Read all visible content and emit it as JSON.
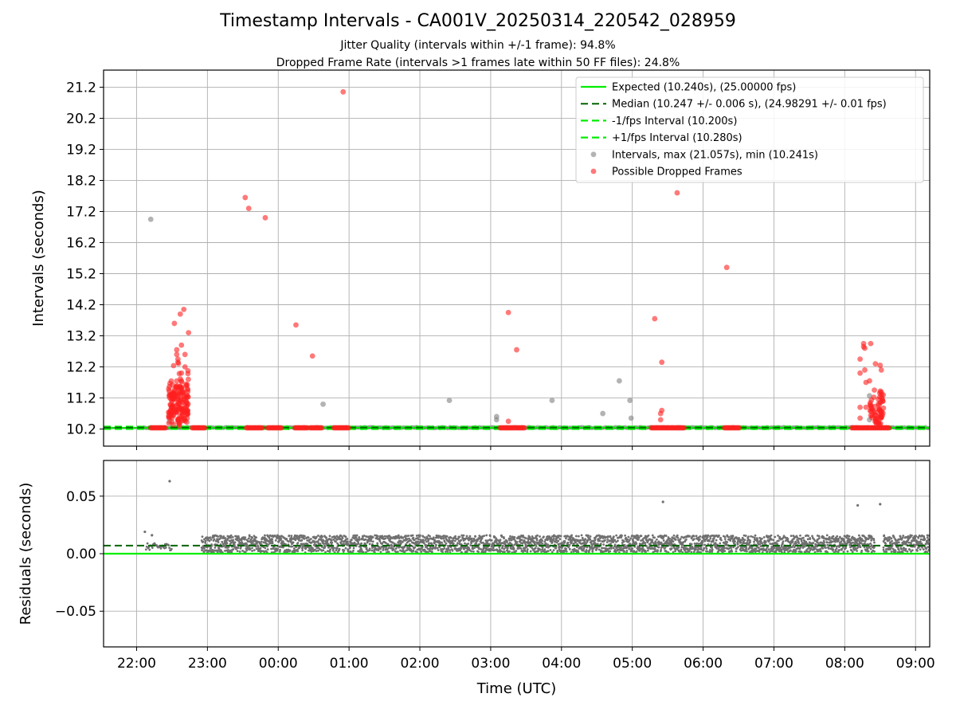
{
  "title": "Timestamp Intervals - CA001V_20250314_220542_028959",
  "subtitles": [
    "Jitter Quality (intervals within +/-1 frame): 94.8%",
    "Dropped Frame Rate (intervals >1 frames late within 50 FF files): 24.8%"
  ],
  "colors": {
    "expected": "#00ee00",
    "median": "#006400",
    "interval_bound": "#00ee00",
    "intervals": "#808080",
    "dropped": "#ff2020",
    "residual_points": "#707070",
    "grid": "#b0b0b0"
  },
  "chart_data": [
    {
      "type": "scatter",
      "ylabel": "Intervals (seconds)",
      "xlim": [
        "21:32",
        "09:12"
      ],
      "ylim": [
        9.65,
        21.75
      ],
      "yticks": [
        "10.2",
        "11.2",
        "12.2",
        "13.2",
        "14.2",
        "15.2",
        "16.2",
        "17.2",
        "18.2",
        "19.2",
        "20.2",
        "21.2"
      ],
      "grid": true,
      "legend_position": "top-right",
      "legend": [
        "Expected (10.240s), (25.00000 fps)",
        "Median (10.247 +/- 0.006 s), (24.98291 +/- 0.01 fps)",
        "-1/fps Interval (10.200s)",
        "+1/fps Interval (10.280s)",
        "Intervals, max (21.057s), min (10.241s)",
        "Possible Dropped Frames"
      ],
      "reference_lines": {
        "expected": 10.24,
        "median": 10.247,
        "minus_1_fps": 10.2,
        "plus_1_fps": 10.28
      },
      "normal_intervals_dense_band": {
        "x_start": "22:05",
        "x_end": "09:12",
        "value": 10.247
      },
      "normal_intervals": [
        {
          "x": "22:12",
          "y": 16.95
        },
        {
          "x": "22:28",
          "y": 10.45
        },
        {
          "x": "00:38",
          "y": 11.0
        },
        {
          "x": "02:25",
          "y": 11.12
        },
        {
          "x": "03:05",
          "y": 10.6
        },
        {
          "x": "03:05",
          "y": 10.5
        },
        {
          "x": "03:52",
          "y": 11.12
        },
        {
          "x": "04:35",
          "y": 10.7
        },
        {
          "x": "04:49",
          "y": 11.75
        },
        {
          "x": "04:58",
          "y": 11.12
        },
        {
          "x": "04:59",
          "y": 10.55
        },
        {
          "x": "08:21",
          "y": 11.27
        },
        {
          "x": "08:21",
          "y": 10.5
        },
        {
          "x": "08:30",
          "y": 11.05
        }
      ],
      "dropped_frame_runs": [
        {
          "start": "22:12",
          "end": "22:25",
          "y": 10.24
        },
        {
          "start": "22:47",
          "end": "22:58",
          "y": 10.24
        },
        {
          "start": "23:33",
          "end": "23:47",
          "y": 10.24
        },
        {
          "start": "23:51",
          "end": "00:03",
          "y": 10.24
        },
        {
          "start": "00:14",
          "end": "00:25",
          "y": 10.24
        },
        {
          "start": "00:27",
          "end": "00:37",
          "y": 10.24
        },
        {
          "start": "00:47",
          "end": "01:00",
          "y": 10.24
        },
        {
          "start": "03:08",
          "end": "03:29",
          "y": 10.24
        },
        {
          "start": "05:16",
          "end": "05:44",
          "y": 10.24
        },
        {
          "start": "06:18",
          "end": "06:31",
          "y": 10.24
        },
        {
          "start": "08:06",
          "end": "08:38",
          "y": 10.24
        }
      ],
      "dropped_frame_clusters": [
        {
          "x_start": "22:27",
          "x_end": "22:44",
          "y_min": 10.4,
          "y_max": 12.1,
          "count": 160
        },
        {
          "x_start": "08:21",
          "x_end": "08:33",
          "y_min": 10.4,
          "y_max": 11.5,
          "count": 60
        }
      ],
      "dropped_frames": [
        {
          "x": "22:32",
          "y": 13.6
        },
        {
          "x": "22:37",
          "y": 13.9
        },
        {
          "x": "22:40",
          "y": 14.05
        },
        {
          "x": "22:44",
          "y": 13.3
        },
        {
          "x": "22:38",
          "y": 12.9
        },
        {
          "x": "22:41",
          "y": 12.6
        },
        {
          "x": "22:34",
          "y": 12.75
        },
        {
          "x": "22:34",
          "y": 12.6
        },
        {
          "x": "22:35",
          "y": 12.35
        },
        {
          "x": "22:35",
          "y": 12.45
        },
        {
          "x": "22:38",
          "y": 12.0
        },
        {
          "x": "22:41",
          "y": 12.2
        },
        {
          "x": "23:32",
          "y": 17.65
        },
        {
          "x": "23:35",
          "y": 17.3
        },
        {
          "x": "23:49",
          "y": 17.0
        },
        {
          "x": "00:15",
          "y": 13.55
        },
        {
          "x": "00:29",
          "y": 12.55
        },
        {
          "x": "00:55",
          "y": 21.05
        },
        {
          "x": "03:15",
          "y": 13.95
        },
        {
          "x": "03:22",
          "y": 12.75
        },
        {
          "x": "03:15",
          "y": 10.45
        },
        {
          "x": "05:19",
          "y": 13.75
        },
        {
          "x": "05:25",
          "y": 12.35
        },
        {
          "x": "05:25",
          "y": 10.8
        },
        {
          "x": "05:24",
          "y": 10.7
        },
        {
          "x": "05:24",
          "y": 10.5
        },
        {
          "x": "05:38",
          "y": 17.8
        },
        {
          "x": "06:20",
          "y": 15.4
        },
        {
          "x": "08:13",
          "y": 12.0
        },
        {
          "x": "08:13",
          "y": 12.45
        },
        {
          "x": "08:13",
          "y": 10.9
        },
        {
          "x": "08:13",
          "y": 10.55
        },
        {
          "x": "08:16",
          "y": 12.95
        },
        {
          "x": "08:16",
          "y": 12.85
        },
        {
          "x": "08:17",
          "y": 12.8
        },
        {
          "x": "08:17",
          "y": 12.1
        },
        {
          "x": "08:18",
          "y": 11.7
        },
        {
          "x": "08:18",
          "y": 10.9
        },
        {
          "x": "08:21",
          "y": 11.75
        },
        {
          "x": "08:22",
          "y": 12.95
        },
        {
          "x": "08:26",
          "y": 12.3
        },
        {
          "x": "08:30",
          "y": 12.25
        },
        {
          "x": "08:31",
          "y": 12.1
        }
      ]
    },
    {
      "type": "scatter",
      "xlabel": "Time (UTC)",
      "ylabel": "Residuals (seconds)",
      "xlim": [
        "21:32",
        "09:12"
      ],
      "ylim": [
        -0.081,
        0.081
      ],
      "yticks": [
        "−0.05",
        "0.00",
        "0.05"
      ],
      "xticks": [
        "22:00",
        "23:00",
        "00:00",
        "01:00",
        "02:00",
        "03:00",
        "04:00",
        "05:00",
        "06:00",
        "07:00",
        "08:00",
        "09:00"
      ],
      "grid": true,
      "reference_lines": {
        "zero": 0.0,
        "median": 0.007
      },
      "residual_band": {
        "x_start": "22:55",
        "x_end": "09:12",
        "y_min": 0.001,
        "y_max": 0.016
      },
      "residual_early_cluster": {
        "x_start": "22:08",
        "x_end": "22:30",
        "y_min": 0.003,
        "y_max": 0.009
      },
      "residual_gap": {
        "x_start": "08:25",
        "x_end": "08:32"
      },
      "residual_outliers": [
        {
          "x": "22:28",
          "y": 0.063
        },
        {
          "x": "22:07",
          "y": 0.019
        },
        {
          "x": "22:13",
          "y": 0.016
        },
        {
          "x": "05:26",
          "y": 0.045
        },
        {
          "x": "08:11",
          "y": 0.042
        },
        {
          "x": "08:30",
          "y": 0.043
        }
      ]
    }
  ]
}
